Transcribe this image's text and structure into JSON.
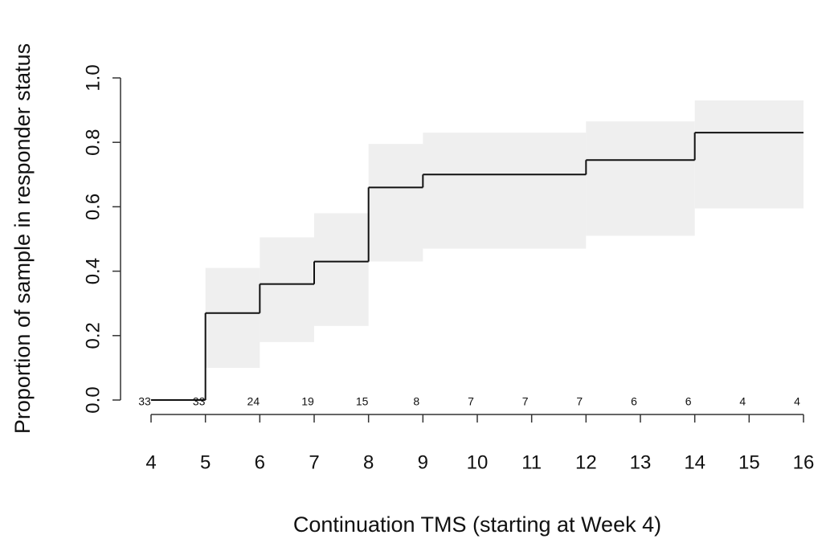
{
  "chart_data": {
    "type": "step",
    "x_label": "Continuation TMS (starting at Week 4)",
    "y_label": "Proportion of sample in responder status",
    "x": [
      4,
      5,
      6,
      7,
      8,
      9,
      12,
      14,
      16
    ],
    "values": [
      0,
      0.27,
      0.36,
      0.43,
      0.66,
      0.7,
      0.745,
      0.83,
      0.83
    ],
    "lower": [
      null,
      0.1,
      0.18,
      0.23,
      0.43,
      0.47,
      0.51,
      0.595,
      null
    ],
    "upper": [
      null,
      0.41,
      0.505,
      0.58,
      0.795,
      0.83,
      0.865,
      0.93,
      null
    ],
    "color": "#111111",
    "band_color": "#efefef",
    "at_risk": {
      "x": [
        4,
        5,
        6,
        7,
        8,
        9,
        10,
        11,
        12,
        13,
        14,
        15,
        16
      ],
      "values": [
        33,
        33,
        24,
        19,
        15,
        8,
        7,
        7,
        7,
        6,
        6,
        4,
        4
      ]
    },
    "xlim": [
      4,
      16
    ],
    "xticks": [
      4,
      5,
      6,
      7,
      8,
      9,
      10,
      11,
      12,
      13,
      14,
      15,
      16
    ],
    "ylim": [
      0,
      1
    ],
    "yticks": [
      {
        "value": 0,
        "label": "0.0"
      },
      0.2,
      0.4,
      0.6,
      0.8,
      {
        "value": 1,
        "label": "1.0"
      }
    ]
  }
}
